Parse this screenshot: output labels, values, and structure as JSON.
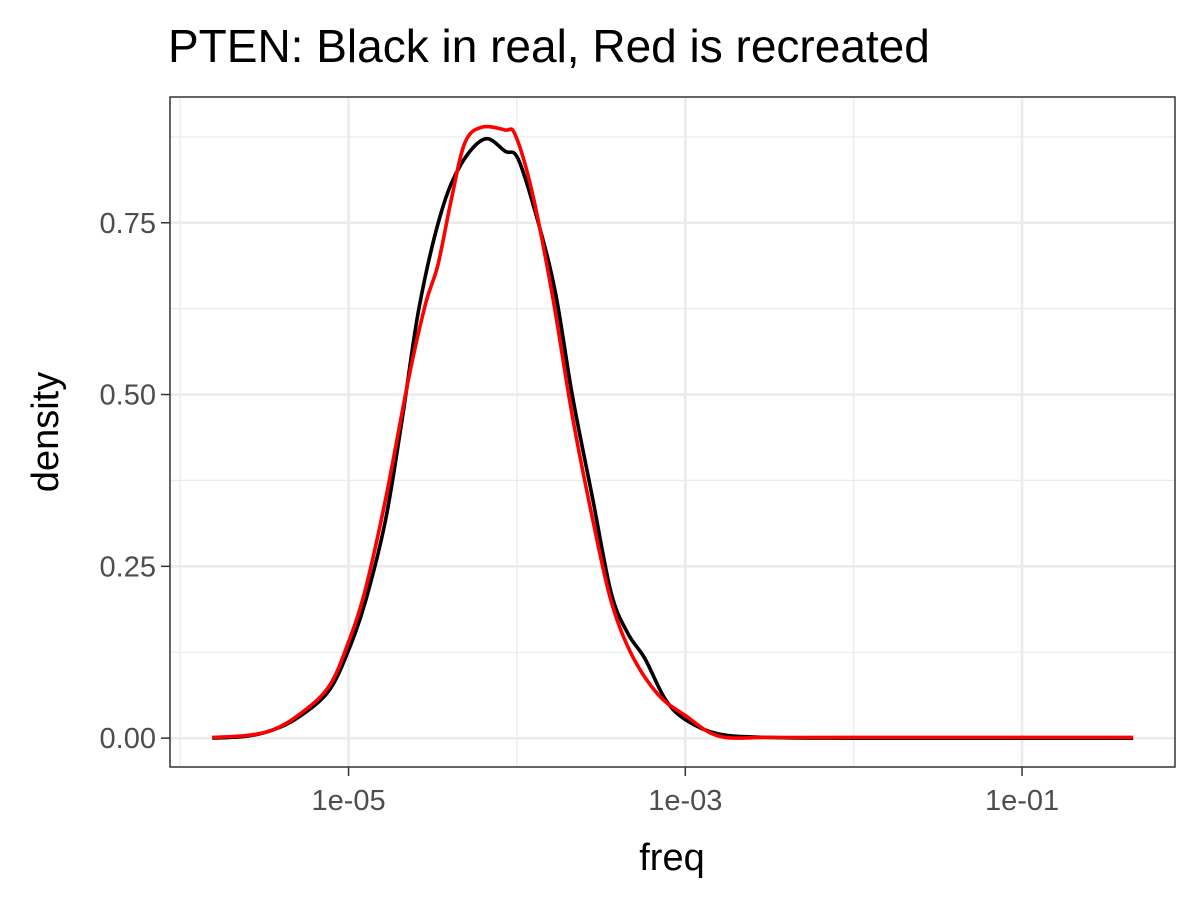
{
  "chart_data": {
    "type": "line",
    "title": "PTEN: Black in real, Red is recreated",
    "xlabel": "freq",
    "ylabel": "density",
    "x_scale": "log10",
    "xlim": [
      8.7e-07,
      0.81
    ],
    "ylim": [
      -0.042,
      0.933
    ],
    "x_ticks": [
      1e-05,
      0.001,
      0.1
    ],
    "x_tick_labels": [
      "1e-05",
      "1e-03",
      "1e-01"
    ],
    "y_ticks": [
      0,
      0.25,
      0.5,
      0.75
    ],
    "y_tick_labels": [
      "0.00",
      "0.25",
      "0.50",
      "0.75"
    ],
    "grid": true,
    "series": [
      {
        "color": "#000000",
        "x": [
          1.55e-06,
          2.51e-06,
          3.55e-06,
          5.01e-06,
          7.59e-06,
          1e-05,
          1.26e-05,
          1.66e-05,
          2.09e-05,
          2.63e-05,
          3.55e-05,
          4.68e-05,
          6.46e-05,
          8.51e-05,
          0.000102,
          0.000135,
          0.00017,
          0.000214,
          0.000282,
          0.000363,
          0.000457,
          0.000575,
          0.000759,
          0.001,
          0.00158,
          0.00316,
          0.01,
          0.1,
          0.457
        ],
        "y": [
          0,
          0.003,
          0.012,
          0.03,
          0.068,
          0.128,
          0.199,
          0.318,
          0.467,
          0.628,
          0.765,
          0.836,
          0.872,
          0.854,
          0.842,
          0.747,
          0.646,
          0.497,
          0.348,
          0.211,
          0.152,
          0.116,
          0.057,
          0.027,
          0.006,
          0.001,
          0,
          0,
          0
        ]
      },
      {
        "color": "#FF0000",
        "x": [
          1.55e-06,
          2.51e-06,
          3.55e-06,
          5.01e-06,
          7.59e-06,
          1e-05,
          1.26e-05,
          1.66e-05,
          2.29e-05,
          2.88e-05,
          3.39e-05,
          4.07e-05,
          4.9e-05,
          6.17e-05,
          8.51e-05,
          9.77e-05,
          0.000123,
          0.000162,
          0.000214,
          0.000282,
          0.000363,
          0.000479,
          0.000692,
          0.001,
          0.00158,
          0.00316,
          0.01,
          0.1,
          0.457
        ],
        "y": [
          0.001,
          0.004,
          0.012,
          0.033,
          0.074,
          0.14,
          0.217,
          0.348,
          0.527,
          0.634,
          0.688,
          0.783,
          0.866,
          0.889,
          0.885,
          0.878,
          0.795,
          0.646,
          0.467,
          0.318,
          0.199,
          0.122,
          0.063,
          0.033,
          0.003,
          0.001,
          0.001,
          0.001,
          0.001
        ]
      }
    ]
  }
}
